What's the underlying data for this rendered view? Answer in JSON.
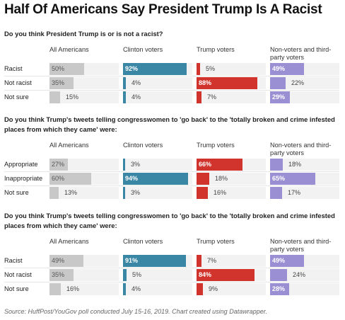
{
  "title": "Half Of Americans Say President Trump Is A Racist",
  "source": "Source: HuffPost/YouGov poll conducted July 15-16, 2019. Chart created using Datawrapper.",
  "colors": {
    "all_americans": "#c8c8c8",
    "clinton_voters": "#3a87a5",
    "trump_voters": "#d0342c",
    "non_voters": "#9b8fd4"
  },
  "chart_data": [
    {
      "type": "bar",
      "title": "Do you think President Trump is or is not a racist?",
      "columns": [
        "All Americans",
        "Clinton voters",
        "Trump voters",
        "Non-voters and third-party voters"
      ],
      "categories": [
        "Racist",
        "Not racist",
        "Not sure"
      ],
      "series": [
        {
          "name": "All Americans",
          "values": [
            50,
            35,
            15
          ]
        },
        {
          "name": "Clinton voters",
          "values": [
            92,
            4,
            4
          ]
        },
        {
          "name": "Trump voters",
          "values": [
            5,
            88,
            7
          ]
        },
        {
          "name": "Non-voters and third-party voters",
          "values": [
            49,
            22,
            29
          ]
        }
      ],
      "unit": "%",
      "ylim": [
        0,
        100
      ]
    },
    {
      "type": "bar",
      "title": "Do you think Trump's tweets telling congresswomen to 'go back' to the 'totally broken and crime infested places from which they came' were:",
      "columns": [
        "All Americans",
        "Clinton voters",
        "Trump voters",
        "Non-voters and third-party voters"
      ],
      "categories": [
        "Appropriate",
        "Inappropriate",
        "Not sure"
      ],
      "series": [
        {
          "name": "All Americans",
          "values": [
            27,
            60,
            13
          ]
        },
        {
          "name": "Clinton voters",
          "values": [
            3,
            94,
            3
          ]
        },
        {
          "name": "Trump voters",
          "values": [
            66,
            18,
            16
          ]
        },
        {
          "name": "Non-voters and third-party voters",
          "values": [
            18,
            65,
            17
          ]
        }
      ],
      "unit": "%",
      "ylim": [
        0,
        100
      ]
    },
    {
      "type": "bar",
      "title": "Do you think Trump's tweets telling congresswomen to 'go back' to the 'totally broken and crime infested places from which they came' were:",
      "columns": [
        "All Americans",
        "Clinton voters",
        "Trump voters",
        "Non-voters and third-party voters"
      ],
      "categories": [
        "Racist",
        "Not racist",
        "Not sure"
      ],
      "series": [
        {
          "name": "All Americans",
          "values": [
            49,
            35,
            16
          ]
        },
        {
          "name": "Clinton voters",
          "values": [
            91,
            5,
            4
          ]
        },
        {
          "name": "Trump voters",
          "values": [
            7,
            84,
            9
          ]
        },
        {
          "name": "Non-voters and third-party voters",
          "values": [
            49,
            24,
            28
          ]
        }
      ],
      "unit": "%",
      "ylim": [
        0,
        100
      ]
    }
  ]
}
